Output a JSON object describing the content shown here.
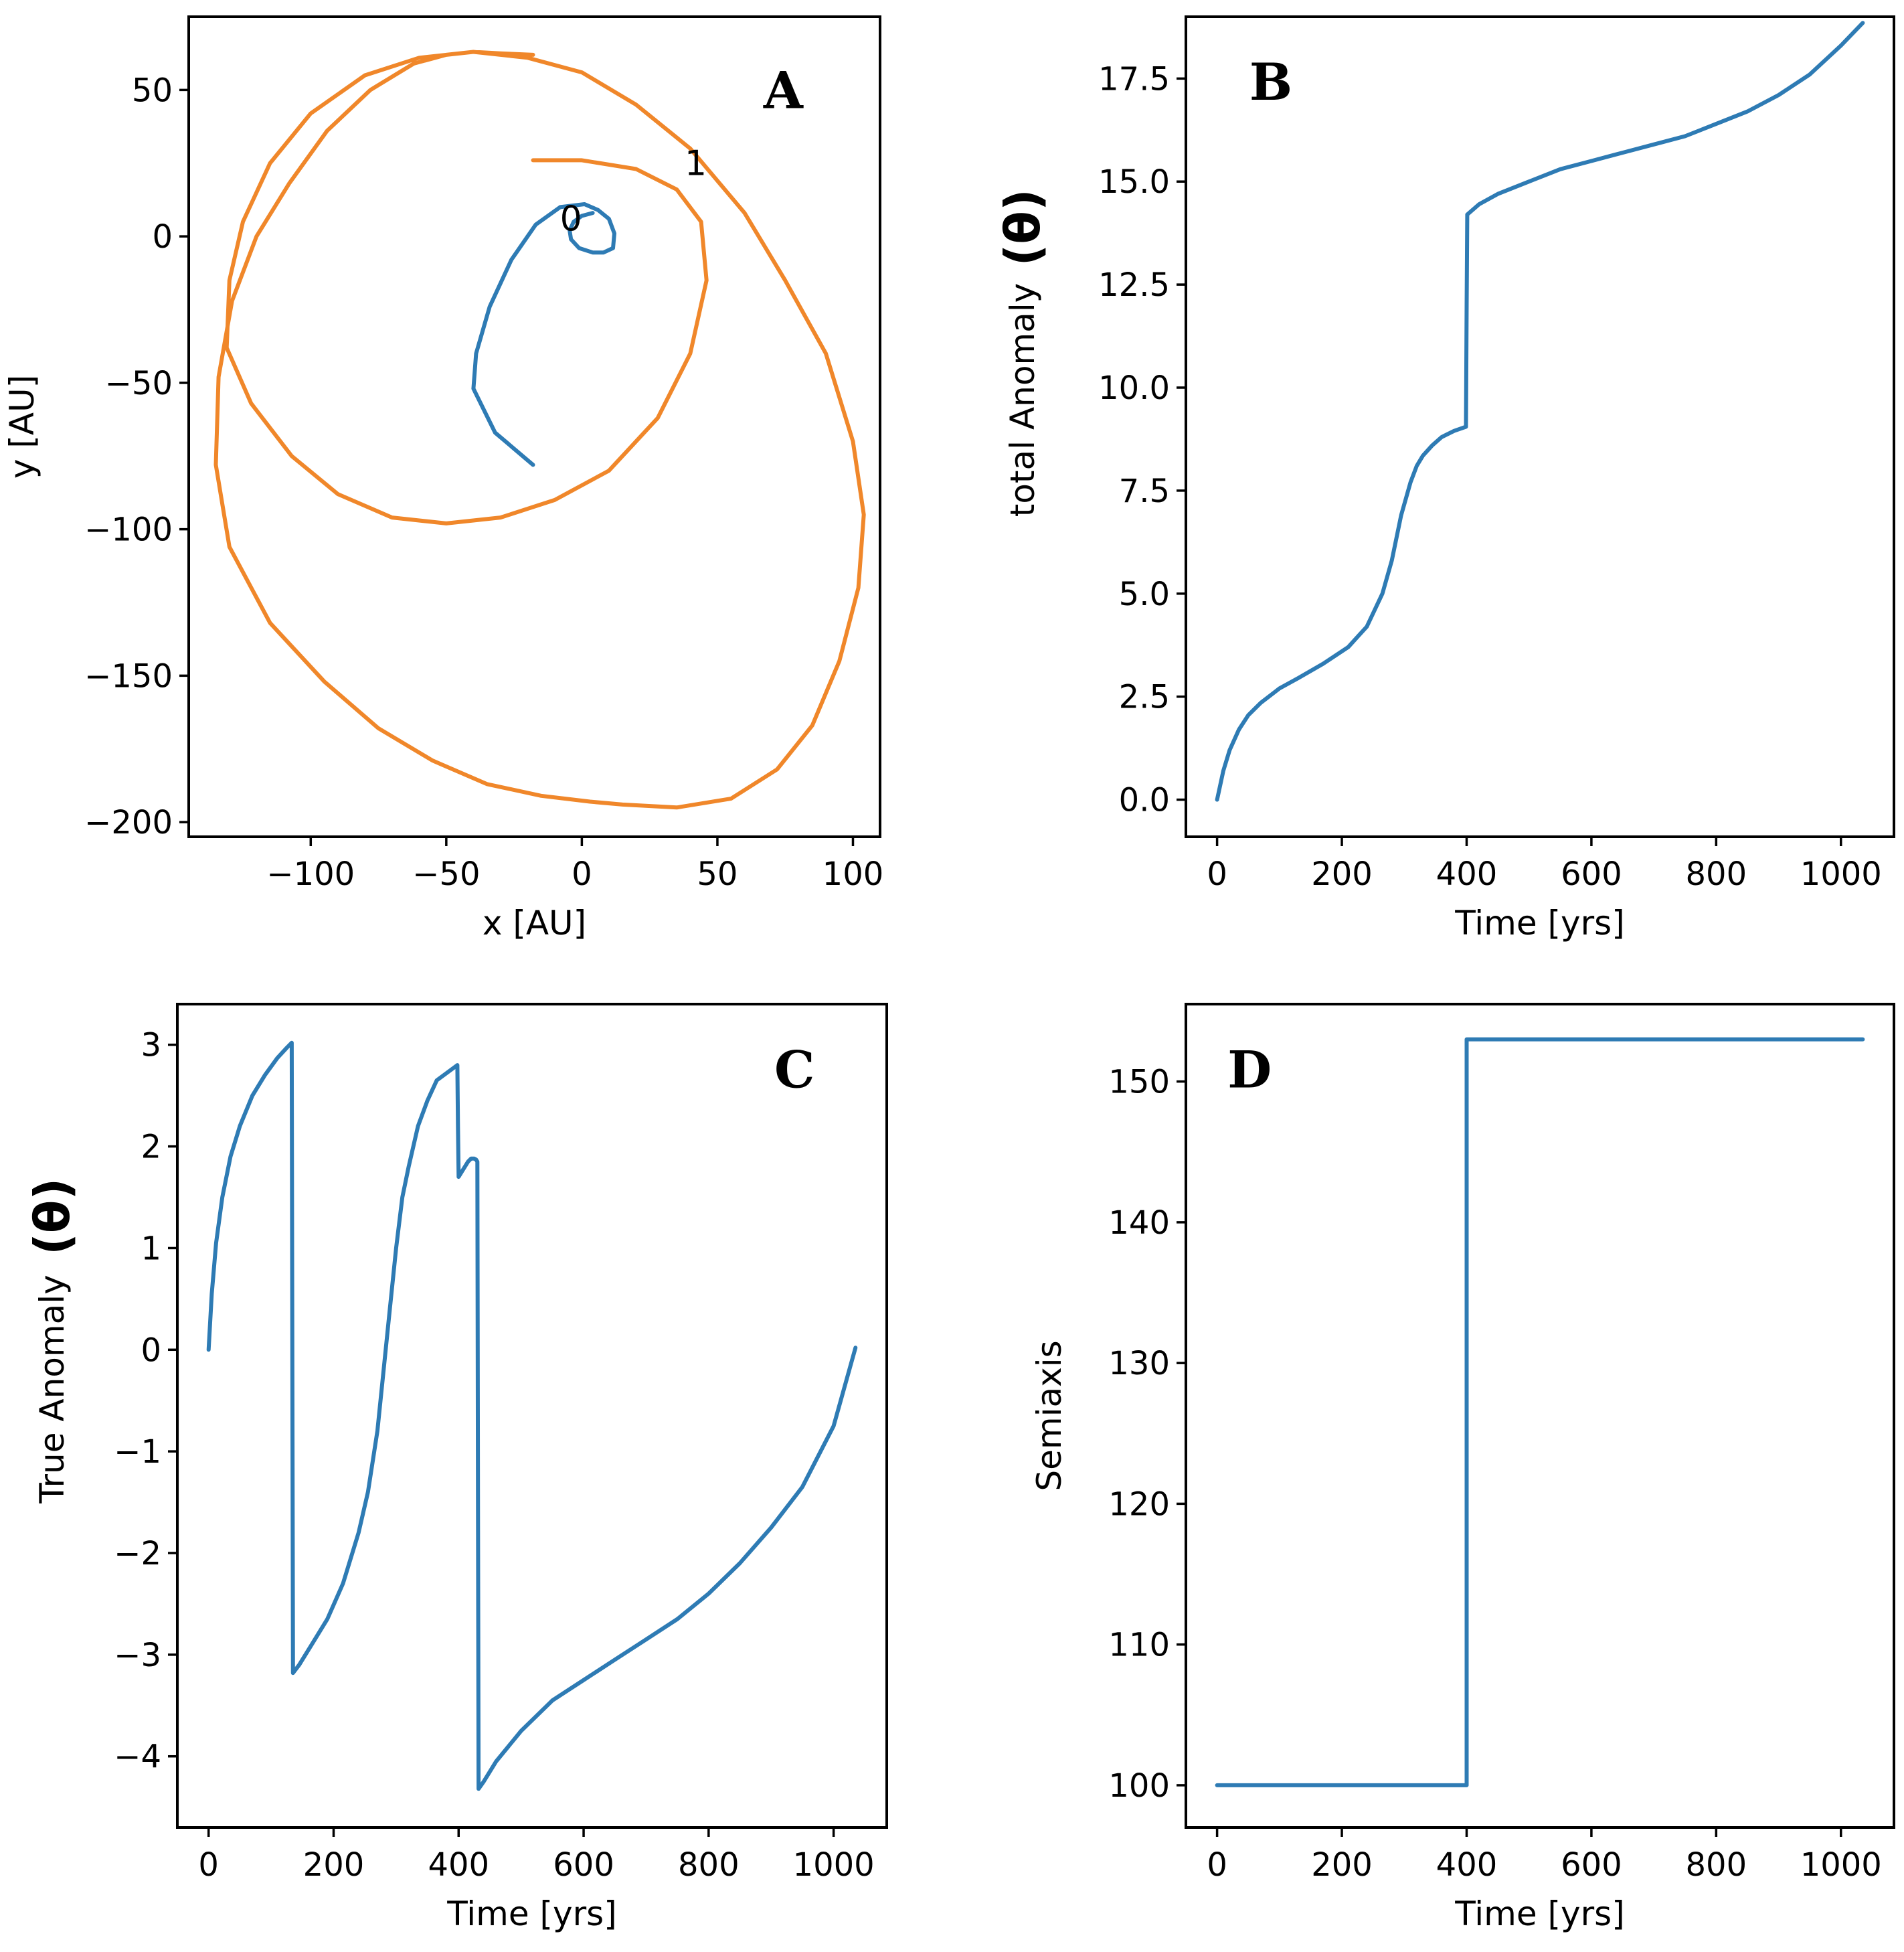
{
  "colors": {
    "blue": "#2e7bb4",
    "orange": "#f0872a"
  },
  "chart_data": [
    {
      "id": "A",
      "type": "line",
      "panel_label": "A",
      "xlabel": "x [AU]",
      "ylabel": "y [AU]",
      "xlim": [
        -145,
        110
      ],
      "ylim": [
        -205,
        75
      ],
      "xticks": [
        -100,
        -50,
        0,
        50,
        100
      ],
      "yticks": [
        -200,
        -150,
        -100,
        -50,
        0,
        50
      ],
      "xtick_labels": [
        "−100",
        "−50",
        "0",
        "50",
        "100"
      ],
      "ytick_labels": [
        "−200",
        "−150",
        "−100",
        "−50",
        "0",
        "50"
      ],
      "annotations": [
        {
          "text": "0",
          "x": -4,
          "y": 2
        },
        {
          "text": "1",
          "x": 42,
          "y": 21
        }
      ],
      "series": [
        {
          "color_key": "blue",
          "x": [
            -18,
            -32,
            -40,
            -39,
            -34,
            -26,
            -17,
            -8,
            1,
            6,
            10,
            12,
            11.5,
            8,
            4,
            -1,
            -4,
            -4.5,
            -3,
            0,
            4
          ],
          "y": [
            -78,
            -67,
            -52,
            -40,
            -24,
            -8,
            4,
            10,
            11,
            9,
            6,
            1,
            -4,
            -5.5,
            -5.5,
            -4,
            -1,
            2,
            5,
            7,
            8
          ]
        },
        {
          "color_key": "orange",
          "x": [
            -18,
            0,
            20,
            35,
            44,
            46,
            40,
            28,
            10,
            -10,
            -30,
            -50,
            -70,
            -90,
            -107,
            -122,
            -131,
            -130,
            -125,
            -115,
            -100,
            -80,
            -60,
            -40,
            -20,
            0,
            20,
            40,
            60,
            75,
            90,
            100,
            104,
            102,
            95,
            85,
            72,
            55,
            35,
            15,
            3,
            -15,
            -35,
            -55,
            -75,
            -95,
            -115,
            -130,
            -135,
            -134,
            -129,
            -120,
            -108,
            -94,
            -78,
            -62,
            -50,
            -40,
            -30,
            -18
          ],
          "y": [
            26,
            26,
            23,
            16,
            5,
            -15,
            -40,
            -62,
            -80,
            -90,
            -96,
            -98,
            -96,
            -88,
            -75,
            -57,
            -38,
            -15,
            5,
            25,
            42,
            55,
            61,
            63,
            61,
            56,
            45,
            30,
            8,
            -15,
            -40,
            -70,
            -95,
            -120,
            -145,
            -167,
            -182,
            -192,
            -195,
            -194,
            -193,
            -191,
            -187,
            -179,
            -168,
            -152,
            -132,
            -106,
            -78,
            -48,
            -22,
            0,
            18,
            36,
            50,
            59,
            62,
            63,
            62.5,
            62
          ]
        }
      ]
    },
    {
      "id": "B",
      "type": "line",
      "panel_label": "B",
      "xlabel": "Time [yrs]",
      "ylabel": "total Anomaly",
      "ylabel_symbol": "(θ)",
      "xlim": [
        -50,
        1085
      ],
      "ylim": [
        -0.9,
        19.0
      ],
      "xticks": [
        0,
        200,
        400,
        600,
        800,
        1000
      ],
      "yticks": [
        0.0,
        2.5,
        5.0,
        7.5,
        10.0,
        12.5,
        15.0,
        17.5
      ],
      "xtick_labels": [
        "0",
        "200",
        "400",
        "600",
        "800",
        "1000"
      ],
      "ytick_labels": [
        "0.0",
        "2.5",
        "5.0",
        "7.5",
        "10.0",
        "12.5",
        "15.0",
        "17.5"
      ],
      "series": [
        {
          "color_key": "blue",
          "x": [
            0,
            10,
            20,
            35,
            50,
            70,
            100,
            130,
            170,
            210,
            240,
            265,
            280,
            295,
            310,
            320,
            330,
            345,
            360,
            380,
            399,
            400,
            401,
            420,
            450,
            500,
            550,
            600,
            650,
            700,
            750,
            800,
            850,
            900,
            950,
            1000,
            1035
          ],
          "y": [
            0,
            0.7,
            1.2,
            1.7,
            2.05,
            2.35,
            2.7,
            2.95,
            3.3,
            3.7,
            4.2,
            5.0,
            5.8,
            6.9,
            7.7,
            8.1,
            8.35,
            8.6,
            8.8,
            8.95,
            9.05,
            12,
            14.2,
            14.45,
            14.7,
            15.0,
            15.3,
            15.5,
            15.7,
            15.9,
            16.1,
            16.4,
            16.7,
            17.1,
            17.6,
            18.3,
            18.85
          ]
        }
      ]
    },
    {
      "id": "C",
      "type": "line",
      "panel_label": "C",
      "xlabel": "Time [yrs]",
      "ylabel": "True Anomaly",
      "ylabel_symbol": "(θ)",
      "xlim": [
        -50,
        1085
      ],
      "ylim": [
        -4.7,
        3.4
      ],
      "xticks": [
        0,
        200,
        400,
        600,
        800,
        1000
      ],
      "yticks": [
        -4,
        -3,
        -2,
        -1,
        0,
        1,
        2,
        3
      ],
      "xtick_labels": [
        "0",
        "200",
        "400",
        "600",
        "800",
        "1000"
      ],
      "ytick_labels": [
        "−4",
        "−3",
        "−2",
        "−1",
        "0",
        "1",
        "2",
        "3"
      ],
      "series": [
        {
          "color_key": "blue",
          "x": [
            0,
            5,
            12,
            22,
            35,
            50,
            70,
            90,
            110,
            125,
            133,
            134,
            135,
            145,
            165,
            190,
            215,
            240,
            255,
            270,
            280,
            290,
            300,
            310,
            320,
            335,
            350,
            365,
            398,
            399,
            400,
            405,
            415,
            420,
            425,
            428,
            430,
            431,
            432,
            440,
            460,
            500,
            550,
            600,
            650,
            700,
            750,
            800,
            850,
            900,
            950,
            1000,
            1035
          ],
          "y": [
            0,
            0.55,
            1.05,
            1.5,
            1.9,
            2.2,
            2.5,
            2.7,
            2.87,
            2.97,
            3.02,
            0,
            -3.18,
            -3.1,
            -2.9,
            -2.65,
            -2.3,
            -1.8,
            -1.4,
            -0.8,
            -0.2,
            0.4,
            1.0,
            1.5,
            1.8,
            2.2,
            2.45,
            2.65,
            2.8,
            2.2,
            1.7,
            1.75,
            1.85,
            1.88,
            1.88,
            1.87,
            1.85,
            -1.5,
            -4.32,
            -4.25,
            -4.05,
            -3.75,
            -3.45,
            -3.25,
            -3.05,
            -2.85,
            -2.65,
            -2.4,
            -2.1,
            -1.75,
            -1.35,
            -0.75,
            0.02
          ]
        }
      ]
    },
    {
      "id": "D",
      "type": "line",
      "panel_label": "D",
      "xlabel": "Time [yrs]",
      "ylabel": "Semiaxis",
      "xlim": [
        -50,
        1085
      ],
      "ylim": [
        97,
        155.5
      ],
      "xticks": [
        0,
        200,
        400,
        600,
        800,
        1000
      ],
      "yticks": [
        100,
        110,
        120,
        130,
        140,
        150
      ],
      "xtick_labels": [
        "0",
        "200",
        "400",
        "600",
        "800",
        "1000"
      ],
      "ytick_labels": [
        "100",
        "110",
        "120",
        "130",
        "140",
        "150"
      ],
      "series": [
        {
          "color_key": "blue",
          "x": [
            0,
            400,
            400,
            1035
          ],
          "y": [
            100,
            100,
            153,
            153
          ]
        }
      ]
    }
  ]
}
